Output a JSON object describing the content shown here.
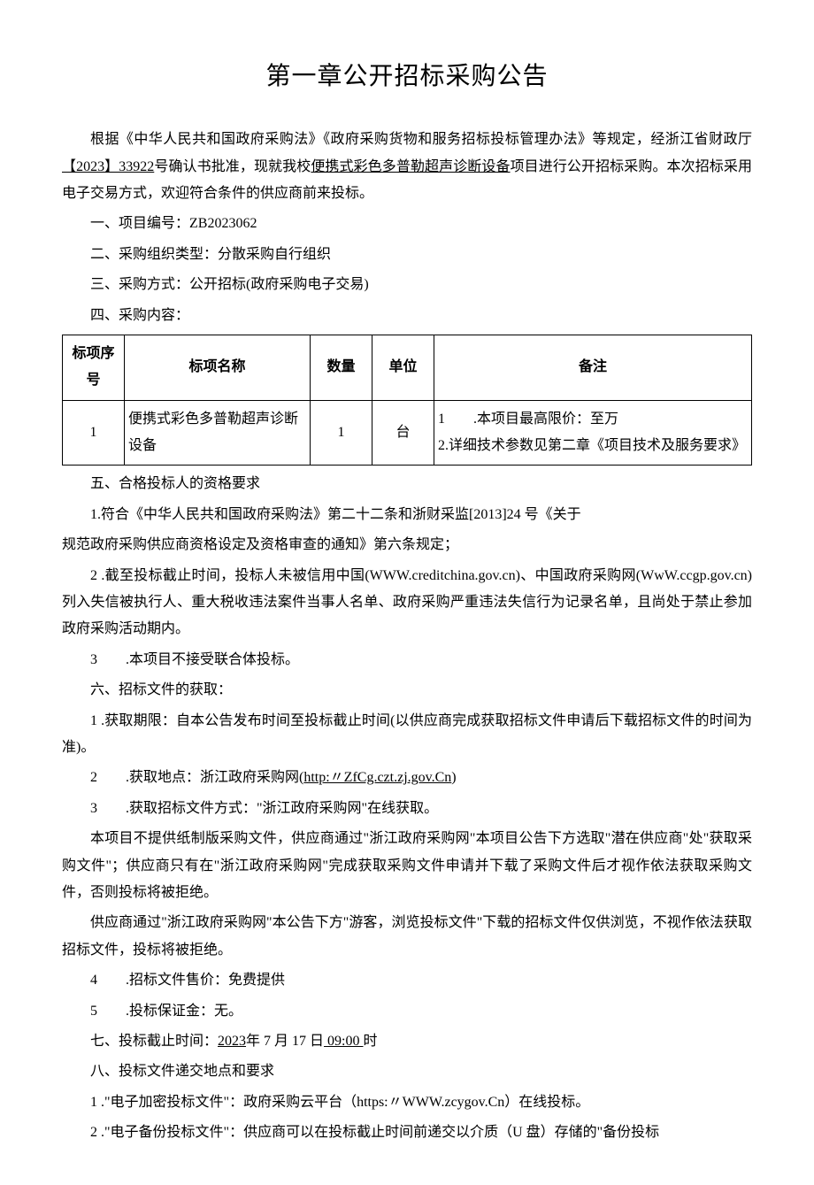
{
  "title": "第一章公开招标采购公告",
  "intro": {
    "prefix": "根据《中华人民共和国政府采购法》《政府采购货物和服务招标投标管理办法》等规定，经浙江省财政厅",
    "approval": "【2023】33922",
    "mid": "号确认书批准，现就我校",
    "project": "便携式彩色多普勒超声诊断设备",
    "suffix": "项目进行公开招标采购。本次招标采用电子交易方式，欢迎符合条件的供应商前来投标。"
  },
  "section1": "一、项目编号：ZB2023062",
  "section2": "二、采购组织类型：分散采购自行组织",
  "section3": "三、采购方式：公开招标(政府采购电子交易)",
  "section4": "四、采购内容：",
  "table": {
    "headers": {
      "seq": "标项序号",
      "name": "标项名称",
      "qty": "数量",
      "unit": "单位",
      "remark": "备注"
    },
    "row": {
      "seq": "1",
      "name": "便携式彩色多普勒超声诊断设备",
      "qty": "1",
      "unit": "台",
      "remark_line1": "1　　.本项目最高限价：至万",
      "remark_line2": "2.详细技术参数见第二章《项目技术及服务要求》"
    }
  },
  "section5_title": "五、合格投标人的资格要求",
  "section5_item1_line1": "1.符合《中华人民共和国政府采购法》第二十二条和浙财采监[2013]24 号《关于",
  "section5_item1_line2": "规范政府采购供应商资格设定及资格审查的通知》第六条规定；",
  "section5_item2": "2 .截至投标截止时间，投标人未被信用中国(WWW.creditchina.gov.cn)、中国政府采购网(WwW.ccgp.gov.cn)列入失信被执行人、重大税收违法案件当事人名单、政府采购严重违法失信行为记录名单，且尚处于禁止参加政府采购活动期内。",
  "section5_item3": "3　　.本项目不接受联合体投标。",
  "section6_title": "六、招标文件的获取：",
  "section6_item1": "1 .获取期限：自本公告发布时间至投标截止时间(以供应商完成获取招标文件申请后下载招标文件的时间为准)。",
  "section6_item2_prefix": "2　　.获取地点：浙江政府采购网(",
  "section6_item2_url": "http:〃ZfCg.czt.zj.gov.Cn",
  "section6_item2_suffix": ")",
  "section6_item3": "3　　.获取招标文件方式：\"浙江政府采购网\"在线获取。",
  "section6_para1": "本项目不提供纸制版采购文件，供应商通过\"浙江政府采购网\"本项目公告下方选取\"潜在供应商\"处\"获取采购文件\"；供应商只有在\"浙江政府采购网\"完成获取采购文件申请并下载了采购文件后才视作依法获取采购文件，否则投标将被拒绝。",
  "section6_para2": "供应商通过\"浙江政府采购网\"本公告下方\"游客，浏览投标文件\"下载的招标文件仅供浏览，不视作依法获取招标文件，投标将被拒绝。",
  "section6_item4": "4　　.招标文件售价：免费提供",
  "section6_item5": "5　　.投标保证金：无。",
  "section7_prefix": "七、投标截止时间：",
  "section7_date": "2023",
  "section7_mid1": "年 7 月 17 日",
  "section7_time": " 09:00 ",
  "section7_suffix": "时",
  "section8_title": "八、投标文件递交地点和要求",
  "section8_item1": "1 .\"电子加密投标文件\"：政府采购云平台（https:〃WWW.zcygov.Cn）在线投标。",
  "section8_item2": "2 .\"电子备份投标文件\"：供应商可以在投标截止时间前递交以介质（U 盘）存储的\"备份投标"
}
